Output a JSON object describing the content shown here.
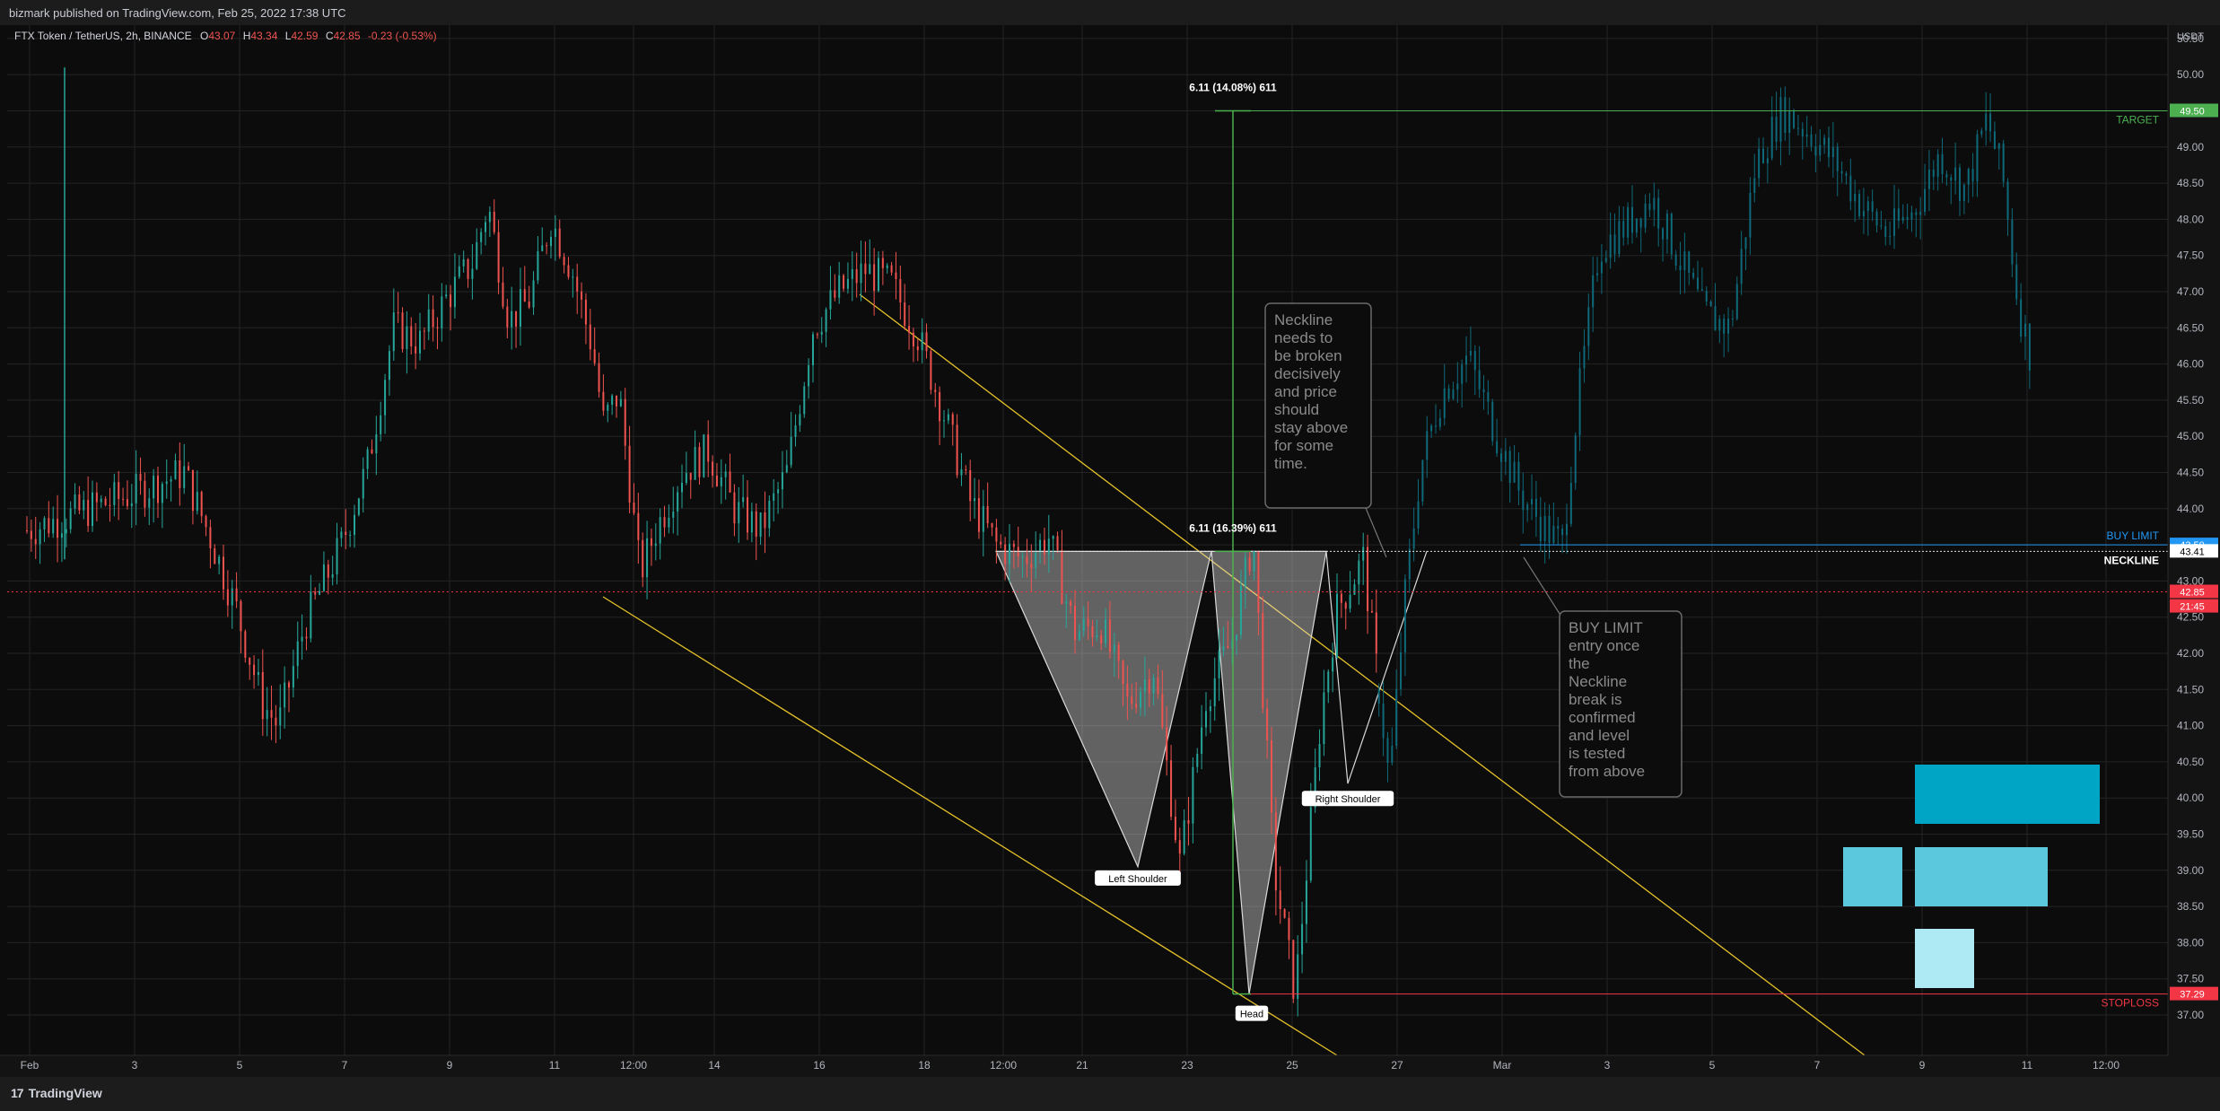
{
  "header": {
    "published": "bizmark published on TradingView.com, Feb 25, 2022 17:38 UTC"
  },
  "footer": {
    "brand": "TradingView"
  },
  "legend": {
    "symbol": "FTX Token / TetherUS, 2h, BINANCE",
    "o_label": "O",
    "o": "43.07",
    "h_label": "H",
    "h": "43.34",
    "l_label": "L",
    "l": "42.59",
    "c_label": "C",
    "c": "42.85",
    "change": "-0.23 (-0.53%)"
  },
  "colors": {
    "background": "#131313",
    "grid": "#232323",
    "up": "#26a69a",
    "down": "#ef5350",
    "projection": "#0e6a7a",
    "trendline": "#e6c229",
    "target": "#4caf50",
    "buy_limit": "#2196f3",
    "stoploss": "#f23645",
    "pattern": "#d9d9d9"
  },
  "chart_data": {
    "type": "candlestick",
    "currency": "USDT",
    "y_ticks": [
      "50.50",
      "50.00",
      "49.50",
      "49.00",
      "48.50",
      "48.00",
      "47.50",
      "47.00",
      "46.50",
      "46.00",
      "45.50",
      "45.00",
      "44.50",
      "44.00",
      "43.50",
      "43.00",
      "42.50",
      "42.00",
      "41.50",
      "41.00",
      "40.50",
      "40.00",
      "39.50",
      "39.00",
      "38.50",
      "38.00",
      "37.50",
      "37.00"
    ],
    "ylim": [
      36.6,
      50.7
    ],
    "x_ticks": [
      "Feb",
      "3",
      "5",
      "7",
      "9",
      "11",
      "12:00",
      "14",
      "16",
      "18",
      "12:00",
      "21",
      "23",
      "25",
      "27",
      "Mar",
      "3",
      "5",
      "7",
      "9",
      "11",
      "12:00"
    ],
    "price_path": [
      [
        0,
        43.7
      ],
      [
        2,
        44.2
      ],
      [
        3,
        44.5
      ],
      [
        3.5,
        43.6
      ],
      [
        4,
        42.6
      ],
      [
        4.5,
        41.3
      ],
      [
        4.8,
        41.0
      ],
      [
        5.3,
        42.4
      ],
      [
        6,
        43.5
      ],
      [
        6.5,
        44.6
      ],
      [
        7,
        46.5
      ],
      [
        7.5,
        46.3
      ],
      [
        8,
        46.9
      ],
      [
        8.5,
        47.4
      ],
      [
        8.8,
        48.2
      ],
      [
        9.2,
        46.6
      ],
      [
        9.6,
        46.9
      ],
      [
        10,
        48.0
      ],
      [
        10.4,
        47.3
      ],
      [
        10.8,
        46.2
      ],
      [
        11,
        45.2
      ],
      [
        11.3,
        45.6
      ],
      [
        11.7,
        43.1
      ],
      [
        12,
        43.7
      ],
      [
        12.5,
        44.5
      ],
      [
        13,
        44.8
      ],
      [
        13.5,
        44.0
      ],
      [
        14,
        43.7
      ],
      [
        14.5,
        44.5
      ],
      [
        15,
        46.5
      ],
      [
        15.5,
        47.0
      ],
      [
        16,
        47.3
      ],
      [
        16.5,
        47.1
      ],
      [
        17,
        46.4
      ],
      [
        17.5,
        45.3
      ],
      [
        18,
        44.1
      ],
      [
        18.5,
        43.5
      ],
      [
        19,
        43.3
      ],
      [
        19.5,
        43.6
      ],
      [
        20,
        42.3
      ],
      [
        20.5,
        42.4
      ],
      [
        21,
        41.3
      ],
      [
        21.5,
        41.8
      ],
      [
        22,
        39.1
      ],
      [
        22.5,
        41.4
      ],
      [
        23,
        42.2
      ],
      [
        23.4,
        43.6
      ],
      [
        23.8,
        39.0
      ],
      [
        24.2,
        37.3
      ],
      [
        24.7,
        41.2
      ],
      [
        25,
        42.6
      ],
      [
        25.5,
        43.3
      ],
      [
        25.8,
        41.5
      ]
    ],
    "projection_path": [
      [
        25.8,
        41.5
      ],
      [
        26.0,
        40.2
      ],
      [
        26.3,
        42.8
      ],
      [
        26.6,
        44.6
      ],
      [
        27,
        45.6
      ],
      [
        27.5,
        46.1
      ],
      [
        28,
        45.1
      ],
      [
        28.5,
        44.2
      ],
      [
        29,
        43.7
      ],
      [
        29.3,
        43.5
      ],
      [
        29.6,
        45.5
      ],
      [
        30,
        47.6
      ],
      [
        30.5,
        47.9
      ],
      [
        31,
        48.3
      ],
      [
        31.5,
        47.5
      ],
      [
        32,
        46.7
      ],
      [
        32.5,
        46.5
      ],
      [
        33,
        48.8
      ],
      [
        33.5,
        49.5
      ],
      [
        34,
        49.2
      ],
      [
        34.5,
        48.8
      ],
      [
        35,
        48.2
      ],
      [
        35.5,
        47.8
      ],
      [
        36,
        48.1
      ],
      [
        36.5,
        48.9
      ],
      [
        37,
        48.4
      ],
      [
        37.4,
        49.4
      ],
      [
        37.7,
        48.6
      ],
      [
        38.0,
        46.8
      ],
      [
        38.3,
        45.9
      ]
    ],
    "levels": {
      "target": 49.5,
      "buy_limit": 43.5,
      "neckline": 43.41,
      "current": 42.85,
      "stoploss": 37.29
    },
    "axis_badges": {
      "target": "49.50",
      "buy_limit": "43.50",
      "neckline": "43.41",
      "current": "42.85",
      "countdown": "21:45",
      "stoploss": "37.29"
    },
    "line_labels": {
      "target": "TARGET",
      "buy_limit": "BUY LIMIT",
      "neckline": "NECKLINE",
      "stoploss": "STOPLOSS"
    },
    "measure_top": "6.11 (14.08%) 611",
    "measure_mid": "6.11 (16.39%) 611",
    "pattern_labels": {
      "left_shoulder": "Left Shoulder",
      "head": "Head",
      "right_shoulder": "Right Shoulder"
    },
    "notes": {
      "neckline_note": "Neckline needs to be broken decisively and price should stay above for some time.",
      "buy_note": "BUY LIMIT entry once the Neckline break is confirmed and level is tested from above"
    }
  }
}
